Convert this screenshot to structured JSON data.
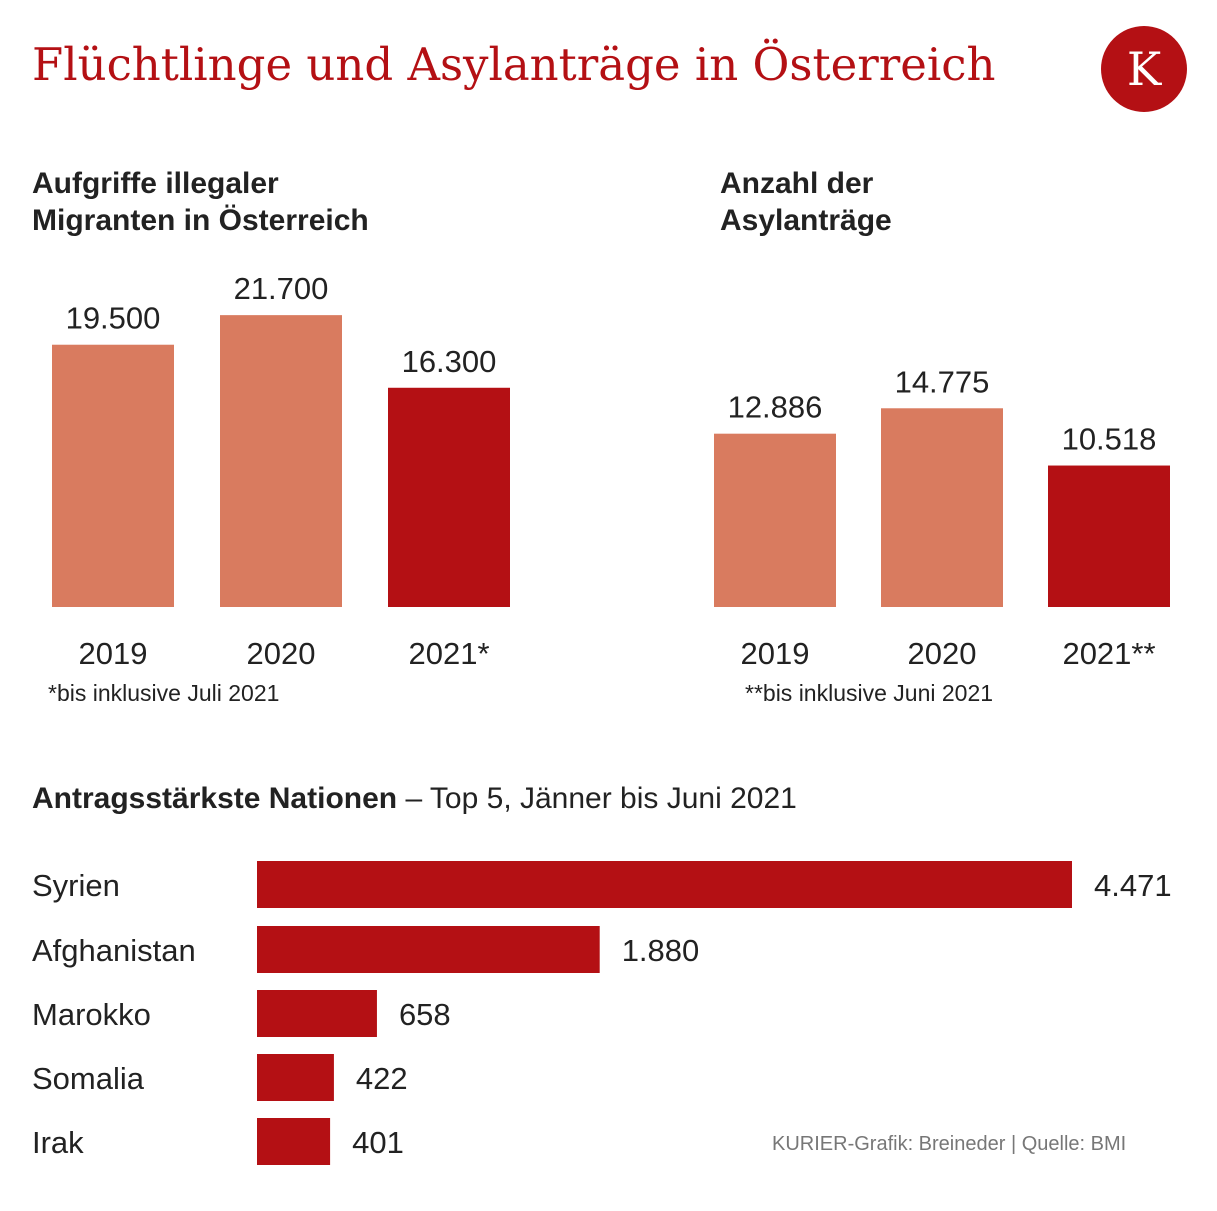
{
  "title": "Flüchtlinge und Asylanträge in Österreich",
  "logo": {
    "letter": "K",
    "color": "#b41014"
  },
  "colors": {
    "light_bar": "#d97b5f",
    "dark_bar": "#b41014"
  },
  "chart_data": [
    {
      "type": "bar",
      "title_lines": [
        "Aufgriffe illegaler",
        "Migranten in Österreich"
      ],
      "categories": [
        "2019",
        "2020",
        "2021*"
      ],
      "values": [
        19500,
        21700,
        16300
      ],
      "value_labels": [
        "19.500",
        "21.700",
        "16.300"
      ],
      "highlight": [
        false,
        false,
        true
      ],
      "footnote": "*bis inklusive Juli 2021",
      "ylim": [
        0,
        24000
      ]
    },
    {
      "type": "bar",
      "title_lines": [
        "Anzahl der",
        "Asylanträge"
      ],
      "categories": [
        "2019",
        "2020",
        "2021**"
      ],
      "values": [
        12886,
        14775,
        10518
      ],
      "value_labels": [
        "12.886",
        "14.775",
        "10.518"
      ],
      "highlight": [
        false,
        false,
        true
      ],
      "footnote": "**bis inklusive Juni 2021",
      "ylim": [
        0,
        24000
      ]
    },
    {
      "type": "bar",
      "orientation": "horizontal",
      "title": "Antragsstärkste Nationen",
      "subtitle": "– Top 5, Jänner bis Juni 2021",
      "categories": [
        "Syrien",
        "Afghanistan",
        "Marokko",
        "Somalia",
        "Irak"
      ],
      "values": [
        4471,
        1880,
        658,
        422,
        401
      ],
      "value_labels": [
        "4.471",
        "1.880",
        "658",
        "422",
        "401"
      ],
      "xlim": [
        0,
        4471
      ]
    }
  ],
  "credit": "KURIER-Grafik: Breineder |  Quelle: BMI"
}
